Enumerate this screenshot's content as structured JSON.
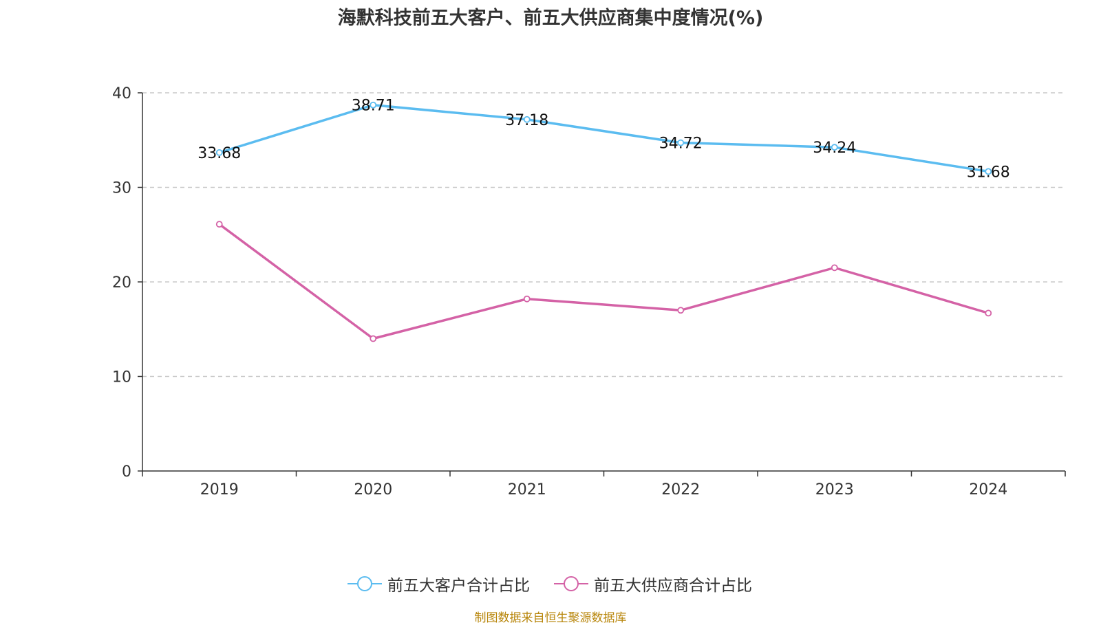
{
  "chart_data": {
    "type": "line",
    "title": "海默科技前五大客户、前五大供应商集中度情况(%)",
    "categories": [
      "2019",
      "2020",
      "2021",
      "2022",
      "2023",
      "2024"
    ],
    "ylim": [
      0,
      40
    ],
    "yticks": [
      0,
      10,
      20,
      30,
      40
    ],
    "grid": true,
    "legend_position": "bottom",
    "series": [
      {
        "name": "前五大客户合计占比",
        "color": "#5bbcf0",
        "values": [
          33.68,
          38.71,
          37.18,
          34.72,
          34.24,
          31.68
        ],
        "labels": [
          "33.68",
          "38.71",
          "37.18",
          "34.72",
          "34.24",
          "31.68"
        ]
      },
      {
        "name": "前五大供应商合计占比",
        "color": "#d462a6",
        "values": [
          26.1,
          14.0,
          18.2,
          17.0,
          21.5,
          16.7
        ]
      }
    ]
  },
  "source": "制图数据来自恒生聚源数据库"
}
